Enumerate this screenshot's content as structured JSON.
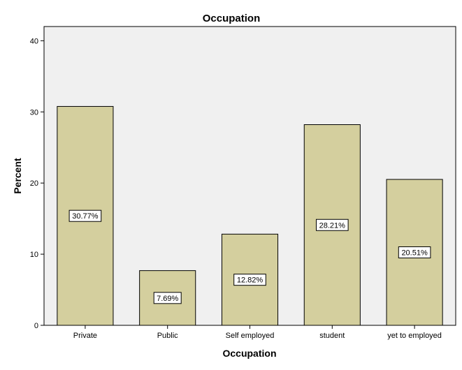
{
  "chart_data": {
    "type": "bar",
    "title": "Occupation",
    "xlabel": "Occupation",
    "ylabel": "Percent",
    "categories": [
      "Private",
      "Public",
      "Self employed",
      "student",
      "yet to employed"
    ],
    "values": [
      30.77,
      7.69,
      12.82,
      28.21,
      20.51
    ],
    "data_labels": [
      "30.77%",
      "7.69%",
      "12.82%",
      "28.21%",
      "20.51%"
    ],
    "yticks": [
      0,
      10,
      20,
      30,
      40
    ],
    "ytick_labels": [
      "0",
      "10",
      "20",
      "30",
      "40"
    ],
    "ylim": [
      0,
      42
    ],
    "grid": false,
    "legend": "none",
    "colors": {
      "bar_fill": "#d4cf9e",
      "bar_stroke": "#000000",
      "plot_background": "#f0f0f0",
      "label_box_fill": "#ffffff"
    }
  }
}
